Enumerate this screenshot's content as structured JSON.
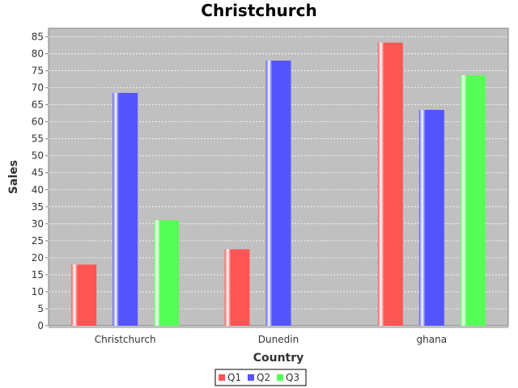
{
  "chart_data": {
    "type": "bar",
    "title": "Christchurch",
    "xlabel": "Country",
    "ylabel": "Sales",
    "categories": [
      "Christchurch",
      "Dunedin",
      "ghana"
    ],
    "series": [
      {
        "name": "Q1",
        "color": "#ff5555",
        "values": [
          18,
          22.5,
          83.3
        ]
      },
      {
        "name": "Q2",
        "color": "#5555ff",
        "values": [
          68.5,
          78,
          63.5
        ]
      },
      {
        "name": "Q3",
        "color": "#55ff55",
        "values": [
          31,
          null,
          73.7
        ]
      }
    ],
    "ylim": [
      0,
      87.5
    ],
    "yticks": [
      0,
      5,
      10,
      15,
      20,
      25,
      30,
      35,
      40,
      45,
      50,
      55,
      60,
      65,
      70,
      75,
      80,
      85
    ],
    "grid": true,
    "legend_position": "bottom",
    "plot_background": "#c0c0c0"
  }
}
